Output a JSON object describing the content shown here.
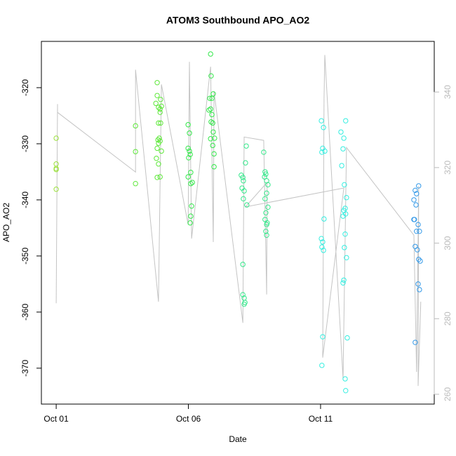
{
  "chart_data": {
    "type": "scatter",
    "title": "ATOM3 Southbound APO_AO2",
    "x_label": "Date",
    "y_label": "APO_AO2",
    "xlim": [
      0.44,
      15.3
    ],
    "ylim": [
      -376.4,
      -311.75
    ],
    "y2lim": [
      257.4,
      353.4
    ],
    "xticks": [
      {
        "value": 1,
        "label": "Oct 01"
      },
      {
        "value": 6,
        "label": "Oct 06"
      },
      {
        "value": 11,
        "label": "Oct 11"
      }
    ],
    "yticks": [
      -370,
      -360,
      -350,
      -340,
      -330,
      -320
    ],
    "y2ticks": [
      260,
      280,
      300,
      320,
      340
    ],
    "y2_color": "#bbbbbb",
    "series": [
      {
        "color": "#9ae03a",
        "x": [
          1.0,
          1.0,
          1.0,
          1.0,
          1.0
        ],
        "values": [
          -329.0,
          -333.6,
          -334.4,
          -334.6,
          -338.1
        ]
      },
      {
        "color": "#5ee83a",
        "x": [
          4.0,
          4.0,
          4.0,
          4.82,
          4.82,
          4.77,
          4.87,
          4.93,
          4.98,
          4.87,
          4.95,
          4.9,
          4.85,
          4.93,
          4.87,
          4.82,
          4.98,
          4.79,
          4.87,
          4.93,
          4.82,
          4.93,
          4.95
        ],
        "values": [
          -326.8,
          -331.4,
          -337.1,
          -319.1,
          -321.4,
          -322.8,
          -323.5,
          -323.8,
          -323.3,
          -326.3,
          -326.3,
          -329.0,
          -329.3,
          -329.5,
          -329.9,
          -330.8,
          -331.3,
          -332.6,
          -333.6,
          -335.9,
          -336.0,
          -324.4,
          -322.1
        ]
      },
      {
        "color": "#33e84a",
        "x": [
          5.99,
          6.04,
          5.99,
          6.04,
          6.07,
          6.01,
          5.99,
          6.09,
          6.15,
          6.09,
          6.12,
          6.09,
          6.07,
          6.84,
          6.86,
          6.94,
          6.81,
          6.78,
          6.89,
          6.86,
          6.92,
          6.94,
          6.84,
          6.99,
          6.92,
          6.97,
          6.97,
          6.89,
          6.84
        ],
        "values": [
          -326.6,
          -328.1,
          -330.8,
          -331.3,
          -331.9,
          -332.5,
          -335.9,
          -335.1,
          -336.9,
          -337.1,
          -341.1,
          -342.9,
          -344.1,
          -314.0,
          -317.9,
          -321.1,
          -321.9,
          -324.0,
          -324.8,
          -326.1,
          -326.3,
          -327.9,
          -329.1,
          -329.0,
          -330.3,
          -331.8,
          -334.1,
          -321.9,
          -323.8
        ]
      },
      {
        "color": "#33e88a",
        "x": [
          8.0,
          8.06,
          8.08,
          8.03,
          8.11,
          8.08,
          8.06,
          8.06,
          8.11,
          8.14,
          8.11,
          8.19,
          8.16,
          8.21,
          8.85,
          8.9,
          8.93,
          8.88,
          8.96,
          9.01,
          8.96,
          8.9,
          8.93,
          8.9,
          8.96,
          8.98,
          8.93,
          8.96,
          9.01
        ],
        "values": [
          -335.6,
          -336.0,
          -336.6,
          -337.9,
          -338.4,
          -339.8,
          -351.5,
          -356.9,
          -357.5,
          -358.3,
          -358.6,
          -330.4,
          -333.4,
          -340.9,
          -331.5,
          -335.0,
          -335.4,
          -335.9,
          -336.6,
          -337.3,
          -338.8,
          -339.8,
          -342.3,
          -343.5,
          -344.4,
          -344.1,
          -345.6,
          -346.3,
          -341.3
        ]
      },
      {
        "color": "#33eee0",
        "x": [
          11.03,
          11.11,
          11.08,
          11.16,
          11.05,
          11.13,
          11.03,
          11.08,
          11.05,
          11.11,
          11.08,
          11.05,
          11.77,
          11.88,
          11.95,
          11.85,
          11.8,
          11.9,
          11.98,
          11.88,
          11.93,
          11.95,
          11.85,
          11.93,
          11.9,
          11.98,
          11.85,
          11.88,
          12.01,
          11.93,
          11.95
        ],
        "values": [
          -325.9,
          -327.1,
          -330.8,
          -331.3,
          -331.5,
          -343.4,
          -346.9,
          -347.5,
          -348.4,
          -349.0,
          -364.4,
          -369.5,
          -327.9,
          -329.0,
          -325.9,
          -330.9,
          -333.9,
          -337.3,
          -339.6,
          -341.9,
          -341.5,
          -342.5,
          -342.9,
          -346.1,
          -348.5,
          -350.3,
          -354.8,
          -354.3,
          -364.6,
          -371.9,
          -374.0
        ]
      },
      {
        "color": "#3399e8",
        "x": [
          14.71,
          14.58,
          14.63,
          14.53,
          14.61,
          14.53,
          14.55,
          14.69,
          14.63,
          14.74,
          14.58,
          14.66,
          14.71,
          14.77,
          14.69,
          14.74,
          14.58
        ],
        "values": [
          -337.5,
          -338.3,
          -338.9,
          -340.0,
          -340.9,
          -343.5,
          -343.5,
          -344.4,
          -345.6,
          -345.6,
          -348.3,
          -348.9,
          -350.6,
          -350.9,
          -355.0,
          -356.0,
          -365.4
        ]
      },
      {
        "type": "line",
        "axis": "y2",
        "color": "#c4c4c4",
        "x": [
          1.0,
          1.05,
          1.05,
          4.0,
          4.0,
          4.87,
          4.98,
          5.99,
          6.04,
          6.12,
          6.84,
          6.94,
          6.97,
          8.06,
          8.11,
          8.85,
          8.96,
          8.98,
          8.16,
          11.88,
          11.08,
          11.13,
          11.16,
          11.85,
          11.98,
          14.53,
          14.63,
          14.71,
          14.69,
          14.79
        ],
        "values": [
          284.1,
          336.8,
          334.6,
          318.8,
          345.9,
          284.5,
          342.0,
          304.9,
          348.0,
          301.2,
          346.7,
          300.3,
          340.2,
          278.9,
          328.1,
          327.2,
          286.4,
          316.1,
          309.6,
          314.6,
          269.7,
          338.3,
          349.8,
          264.1,
          325.3,
          302.1,
          265.9,
          315.1,
          262.2,
          284.5
        ]
      }
    ]
  }
}
